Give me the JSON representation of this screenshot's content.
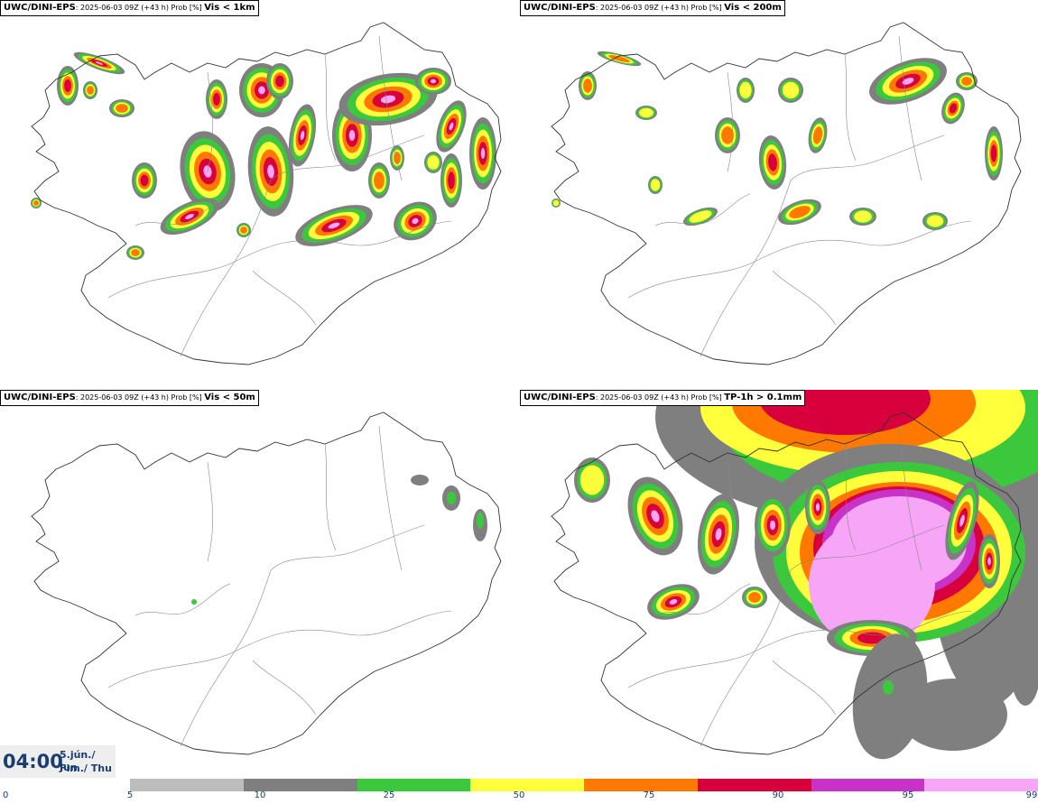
{
  "panels": [
    {
      "source": "UWC/DINI-EPS",
      "meta": ": 2025-06-03 09Z (+43 h) Prob [%] ",
      "variable": "Vis < 1km"
    },
    {
      "source": "UWC/DINI-EPS",
      "meta": ": 2025-06-03 09Z (+43 h) Prob [%] ",
      "variable": "Vis < 200m"
    },
    {
      "source": "UWC/DINI-EPS",
      "meta": ": 2025-06-03 09Z (+43 h) Prob [%] ",
      "variable": "Vis < 50m"
    },
    {
      "source": "UWC/DINI-EPS",
      "meta": ": 2025-06-03 09Z (+43 h) Prob [%] ",
      "variable": "TP-1h > 0.1mm"
    }
  ],
  "valid_time": {
    "clock": "04:00",
    "date_line": "5.jún./ Jun",
    "weekday_line": "Fim./ Thu"
  },
  "colorbar": {
    "ticks": [
      "0",
      "5",
      "10",
      "25",
      "50",
      "75",
      "90",
      "95",
      "99"
    ],
    "colors": [
      "#bdbdbd",
      "#7f7f7f",
      "#3cc83c",
      "#ffff3c",
      "#ff7800",
      "#d7003c",
      "#c832c8",
      "#f7a6f7"
    ]
  },
  "colors": {
    "text": "#1c3d70",
    "coast": "#333333",
    "roads": "#555555"
  },
  "icons": {
    "map": "iceland-outline"
  }
}
